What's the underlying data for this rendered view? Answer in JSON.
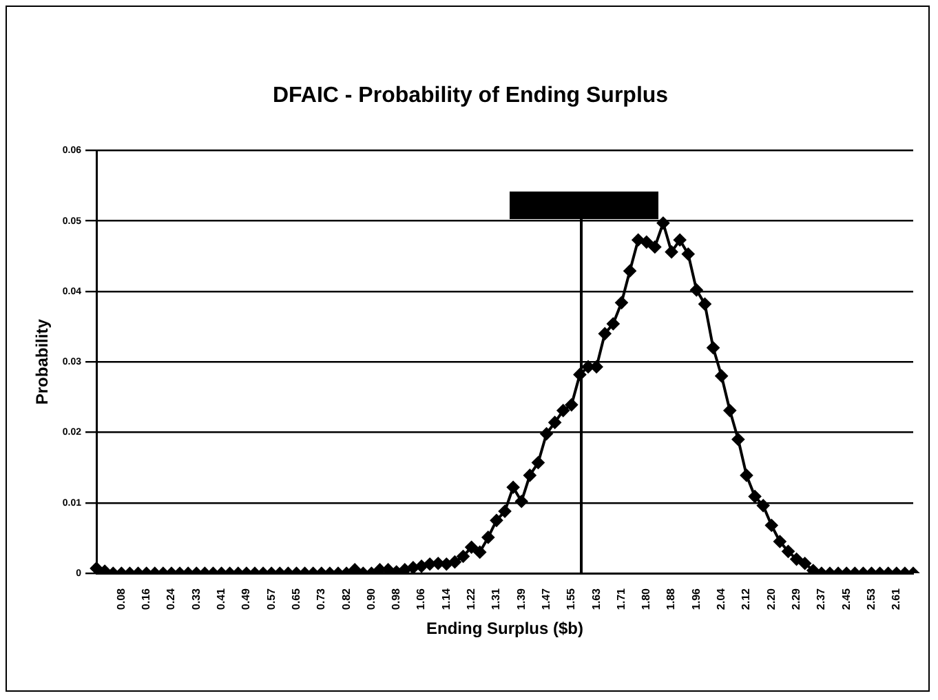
{
  "chart_data": {
    "type": "line",
    "title": "DFAIC - Probability of Ending Surplus",
    "xlabel": "Ending Surplus ($b)",
    "ylabel": "Probability",
    "categories": [
      null,
      null,
      null,
      "0.08",
      null,
      null,
      "0.16",
      null,
      null,
      "0.24",
      null,
      null,
      "0.33",
      null,
      null,
      "0.41",
      null,
      null,
      "0.49",
      null,
      null,
      "0.57",
      null,
      null,
      "0.65",
      null,
      null,
      "0.73",
      null,
      null,
      "0.82",
      null,
      null,
      "0.90",
      null,
      null,
      "0.98",
      null,
      null,
      "1.06",
      null,
      null,
      "1.14",
      null,
      null,
      "1.22",
      null,
      null,
      "1.31",
      null,
      null,
      "1.39",
      null,
      null,
      "1.47",
      null,
      null,
      "1.55",
      null,
      null,
      "1.63",
      null,
      null,
      "1.71",
      null,
      null,
      "1.80",
      null,
      null,
      "1.88",
      null,
      null,
      "1.96",
      null,
      null,
      "2.04",
      null,
      null,
      "2.12",
      null,
      null,
      "2.20",
      null,
      null,
      "2.29",
      null,
      null,
      "2.37",
      null,
      null,
      "2.45",
      null,
      null,
      "2.53",
      null,
      null,
      "2.61",
      null,
      null
    ],
    "series": [
      {
        "color": "#000000",
        "values": [
          0.0007,
          0.0003,
          0,
          0,
          0,
          0,
          0,
          0,
          0,
          0,
          0,
          0,
          0,
          0,
          0,
          0,
          0,
          0,
          0,
          0,
          0,
          0,
          0,
          0,
          0,
          0,
          0,
          0,
          0,
          0,
          0,
          0.0005,
          0,
          0,
          0.0005,
          0.0005,
          0.0002,
          0.0005,
          0.0008,
          0.001,
          0.0013,
          0.0014,
          0.0013,
          0.0016,
          0.0024,
          0.0037,
          0.003,
          0.0051,
          0.0075,
          0.0088,
          0.0122,
          0.0102,
          0.0139,
          0.0157,
          0.0198,
          0.0214,
          0.0231,
          0.0239,
          0.0282,
          0.0293,
          0.0293,
          0.034,
          0.0354,
          0.0384,
          0.0429,
          0.0473,
          0.047,
          0.0463,
          0.0497,
          0.0456,
          0.0473,
          0.0453,
          0.0402,
          0.0382,
          0.032,
          0.028,
          0.0231,
          0.019,
          0.0139,
          0.0109,
          0.0096,
          0.0068,
          0.0045,
          0.0031,
          0.002,
          0.0014,
          0.0004,
          0,
          0,
          0,
          0,
          0,
          0,
          0,
          0,
          0,
          0,
          0,
          0
        ]
      }
    ],
    "ylim": [
      0,
      0.06
    ],
    "yticks": [
      0,
      0.01,
      0.02,
      0.03,
      0.04,
      0.05,
      0.06
    ],
    "grid": "y",
    "marker": "diamond",
    "line_style": "solid",
    "legend": false
  }
}
